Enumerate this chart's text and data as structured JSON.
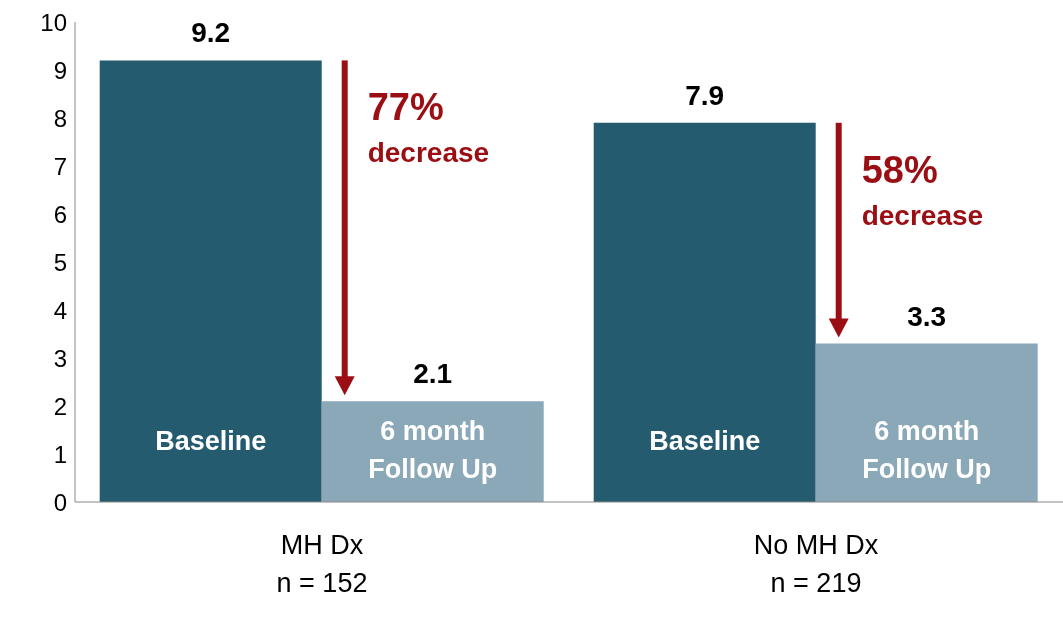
{
  "chart_data": {
    "type": "bar",
    "categories": [
      "MH Dx\nn = 152",
      "No MH Dx\nn = 219"
    ],
    "series": [
      {
        "name": "Baseline",
        "color": "#245b6e",
        "values": [
          9.2,
          7.9
        ]
      },
      {
        "name": "6 month Follow Up",
        "color": "#8aa8b8",
        "values": [
          2.1,
          3.3
        ]
      }
    ],
    "ylim": [
      0,
      10
    ],
    "yticks": [
      0,
      1,
      2,
      3,
      4,
      5,
      6,
      7,
      8,
      9,
      10
    ],
    "data_labels": true,
    "legend": false,
    "annotations": [
      "77% decrease",
      "58% decrease"
    ]
  }
}
